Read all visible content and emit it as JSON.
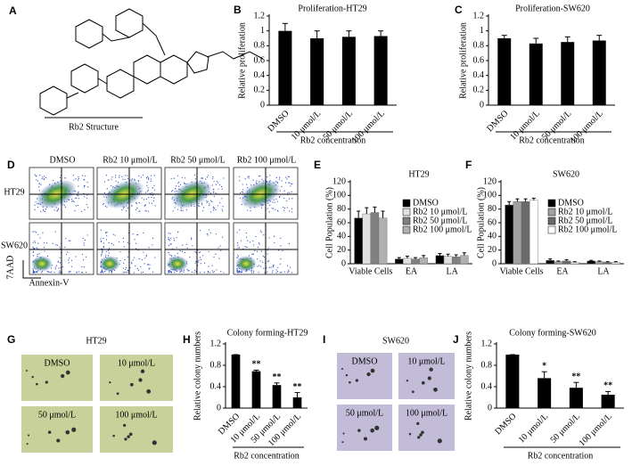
{
  "structure": {
    "label": "A",
    "caption": "Rb2 Structure"
  },
  "flow": {
    "label": "D",
    "columns": [
      "DMSO",
      "Rb2 10 μmol/L",
      "Rb2 50 μmol/L",
      "Rb2 100 μmol/L"
    ],
    "rows": [
      "HT29",
      "SW620"
    ],
    "y_axis": "7AAD",
    "x_axis": "Annexin-V"
  },
  "colony_ht29_images": {
    "label": "G",
    "title": "HT29",
    "captions": [
      "DMSO",
      "10 μmol/L",
      "50 μmol/L",
      "100 μmol/L"
    ]
  },
  "colony_sw620_images": {
    "label": "I",
    "title": "SW620",
    "captions": [
      "DMSO",
      "10 μmol/L",
      "50 μmol/L",
      "100 μmol/L"
    ]
  },
  "chart_data": [
    {
      "type": "bar",
      "label": "B",
      "title": "Proliferation-HT29",
      "y_label": "Relative proliferation",
      "x_label": "Rb2 concentration",
      "categories": [
        "DMSO",
        "10 μmol/L",
        "50 μmol/L",
        "100 μmol/L"
      ],
      "values": [
        1.0,
        0.9,
        0.92,
        0.93
      ],
      "errors": [
        0.1,
        0.1,
        0.08,
        0.07
      ],
      "color": "#000000",
      "ylim": [
        0,
        1.2
      ],
      "yticks": [
        0,
        0.2,
        0.4,
        0.6,
        0.8,
        1,
        1.2
      ]
    },
    {
      "type": "bar",
      "label": "C",
      "title": "Proliferation-SW620",
      "y_label": "Relative proliferation",
      "x_label": "Rb2 concentration",
      "categories": [
        "DMSO",
        "10 μmol/L",
        "50 μmol/L",
        "100 μmol/L"
      ],
      "values": [
        0.9,
        0.83,
        0.85,
        0.87
      ],
      "errors": [
        0.04,
        0.07,
        0.07,
        0.07
      ],
      "color": "#000000",
      "ylim": [
        0,
        1.2
      ],
      "yticks": [
        0,
        0.2,
        0.4,
        0.6,
        0.8,
        1,
        1.2
      ]
    },
    {
      "type": "grouped-bar",
      "label": "E",
      "title": "HT29",
      "y_label": "Cell Population (%)",
      "categories": [
        "Viable Cells",
        "EA",
        "LA"
      ],
      "series": [
        {
          "name": "DMSO",
          "color": "#000000",
          "values": [
            67,
            7,
            12
          ],
          "errors": [
            10,
            2,
            3
          ]
        },
        {
          "name": "Rb2 10 μmol/L",
          "color": "#e0e0e0",
          "values": [
            73,
            8,
            11
          ],
          "errors": [
            9,
            3,
            3
          ]
        },
        {
          "name": "Rb2 50 μmol/L",
          "color": "#808080",
          "values": [
            75,
            7,
            10
          ],
          "errors": [
            8,
            2,
            3
          ]
        },
        {
          "name": "Rb2 100 μmol/L",
          "color": "#b0b0b0",
          "values": [
            67,
            9,
            12
          ],
          "errors": [
            10,
            3,
            4
          ]
        }
      ],
      "ylim": [
        0,
        120
      ],
      "yticks": [
        0,
        20,
        40,
        60,
        80,
        100,
        120
      ]
    },
    {
      "type": "grouped-bar",
      "label": "F",
      "title": "SW620",
      "y_label": "Cell Population (%)",
      "categories": [
        "Viable Cells",
        "EA",
        "LA"
      ],
      "series": [
        {
          "name": "DMSO",
          "color": "#000000",
          "values": [
            86,
            5,
            4
          ],
          "errors": [
            5,
            2,
            1
          ]
        },
        {
          "name": "Rb2 10 μmol/L",
          "color": "#a0a0a0",
          "values": [
            91,
            3,
            3
          ],
          "errors": [
            4,
            1,
            1
          ]
        },
        {
          "name": "Rb2 50 μmol/L",
          "color": "#6a6a6a",
          "values": [
            91,
            4,
            2
          ],
          "errors": [
            4,
            2,
            1
          ]
        },
        {
          "name": "Rb2 100 μmol/L",
          "color": "#ffffff",
          "values": [
            93,
            2,
            2
          ],
          "errors": [
            3,
            1,
            1
          ]
        }
      ],
      "ylim": [
        0,
        120
      ],
      "yticks": [
        0,
        20,
        40,
        60,
        80,
        100,
        120
      ]
    },
    {
      "type": "bar",
      "label": "H",
      "title": "Colony forming-HT29",
      "y_label": "Relative colony numbers",
      "x_label": "Rb2 concentration",
      "categories": [
        "DMSO",
        "10 μmol/L",
        "50 μmol/L",
        "100 μmol/L"
      ],
      "values": [
        1,
        0.69,
        0.43,
        0.2
      ],
      "errors": [
        0,
        0.02,
        0.04,
        0.09
      ],
      "annotations": [
        null,
        "**",
        "**",
        "**"
      ],
      "color": "#000000",
      "ylim": [
        0,
        1.2
      ],
      "yticks": [
        0,
        0.4,
        0.8,
        1.2
      ]
    },
    {
      "type": "bar",
      "label": "J",
      "title": "Colony forming-SW620",
      "y_label": "Relative colony numbers",
      "x_label": "Rb2 concentration",
      "categories": [
        "DMSO",
        "10 μmol/L",
        "50 μmol/L",
        "100 μmol/L"
      ],
      "values": [
        1,
        0.56,
        0.38,
        0.25
      ],
      "errors": [
        0,
        0.12,
        0.1,
        0.06
      ],
      "annotations": [
        null,
        "*",
        "**",
        "**"
      ],
      "color": "#000000",
      "ylim": [
        0,
        1.2
      ],
      "yticks": [
        0,
        0.4,
        0.8,
        1.2
      ]
    }
  ]
}
